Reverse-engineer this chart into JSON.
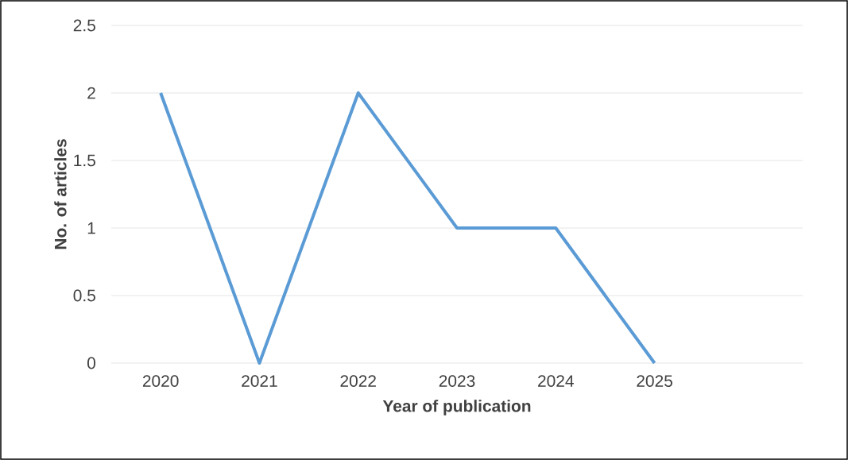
{
  "chart_data": {
    "type": "line",
    "xlabel": "Year of publication",
    "ylabel": "No. of articles",
    "categories": [
      "2020",
      "2021",
      "2022",
      "2023",
      "2024",
      "2025",
      null
    ],
    "series": [
      {
        "color": "#5b9bd5",
        "values": [
          2,
          0,
          2,
          1,
          1,
          0,
          null
        ]
      }
    ],
    "ylim": [
      0,
      2.5
    ],
    "yticks": [
      0,
      0.5,
      1,
      1.5,
      2,
      2.5
    ],
    "grid": "y",
    "legend": false,
    "marker": "none",
    "line_style": "solid"
  }
}
